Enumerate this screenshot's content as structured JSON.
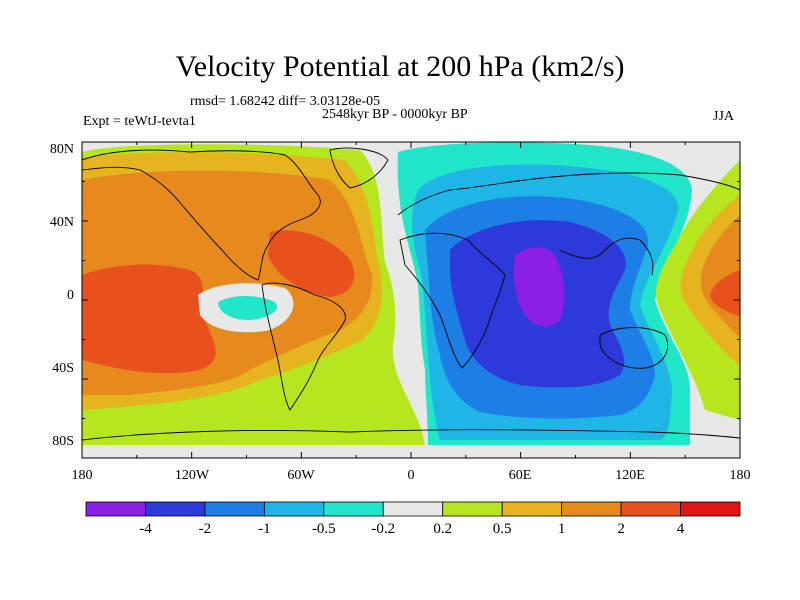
{
  "title": "Velocity Potential at 200 hPa (km2/s)",
  "stats": "rmsd= 1.68242 diff= 3.03128e-05",
  "subtitle": "2548kyr BP - 0000kyr BP",
  "experiment": "Expt = teWtJ-tevta1",
  "season": "JJA",
  "axes": {
    "y_ticks": [
      "80N",
      "40N",
      "0",
      "40S",
      "80S"
    ],
    "x_ticks": [
      "180",
      "120W",
      "60W",
      "0",
      "60E",
      "120E",
      "180"
    ]
  },
  "colorbar": {
    "colors": [
      "#8b1fe6",
      "#2d3ad9",
      "#1d7ee6",
      "#1fb6e6",
      "#22e6c9",
      "#e8e8e8",
      "#b6e61e",
      "#e6b41e",
      "#e68a1e",
      "#e8501e",
      "#e01616"
    ],
    "labels": [
      "-4",
      "-2",
      "-1",
      "-0.5",
      "-0.2",
      "0.2",
      "0.5",
      "1",
      "2",
      "4"
    ]
  },
  "map_colors": {
    "background": "#e8e8e8",
    "coast": "#000000"
  }
}
